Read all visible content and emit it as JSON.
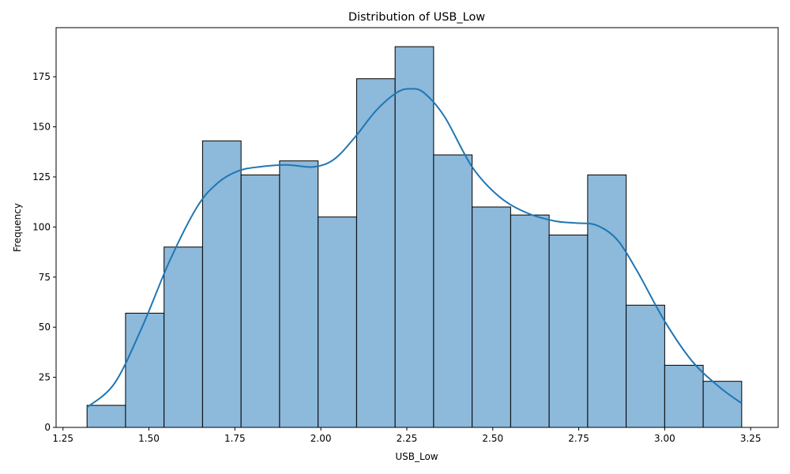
{
  "chart_data": {
    "type": "bar",
    "title": "Distribution of USB_Low",
    "xlabel": "USB_Low",
    "ylabel": "Frequency",
    "xlim": [
      1.23,
      3.33
    ],
    "ylim": [
      0,
      199.5
    ],
    "x_ticks": [
      1.25,
      1.5,
      1.75,
      2.0,
      2.25,
      2.5,
      2.75,
      3.0,
      3.25
    ],
    "x_tick_labels": [
      "1.25",
      "1.50",
      "1.75",
      "2.00",
      "2.25",
      "2.50",
      "2.75",
      "3.00",
      "3.25"
    ],
    "y_ticks": [
      0,
      25,
      50,
      75,
      100,
      125,
      150,
      175
    ],
    "y_tick_labels": [
      "0",
      "25",
      "50",
      "75",
      "100",
      "125",
      "150",
      "175"
    ],
    "bin_edges": [
      1.32,
      1.432,
      1.544,
      1.656,
      1.768,
      1.88,
      1.992,
      2.104,
      2.216,
      2.328,
      2.44,
      2.552,
      2.664,
      2.776,
      2.888,
      3.0,
      3.112,
      3.224
    ],
    "values": [
      11,
      57,
      90,
      143,
      126,
      133,
      105,
      174,
      190,
      136,
      110,
      106,
      96,
      126,
      61,
      31,
      23
    ],
    "kde": {
      "x": [
        1.32,
        1.4,
        1.48,
        1.56,
        1.64,
        1.7,
        1.76,
        1.82,
        1.9,
        1.98,
        2.04,
        2.1,
        2.16,
        2.22,
        2.26,
        2.3,
        2.36,
        2.44,
        2.52,
        2.6,
        2.68,
        2.74,
        2.8,
        2.86,
        2.92,
        3.0,
        3.08,
        3.16,
        3.224
      ],
      "y": [
        10,
        22,
        50,
        83,
        110,
        122,
        128,
        130,
        131,
        130,
        134,
        145,
        158,
        167,
        169,
        167,
        155,
        130,
        115,
        107,
        103,
        102,
        101,
        94,
        78,
        53,
        33,
        20,
        12
      ]
    },
    "bar_fill": "#8db9db",
    "bar_edge": "#000000",
    "line_color": "#1f77b4",
    "grid": false,
    "legend": false
  }
}
